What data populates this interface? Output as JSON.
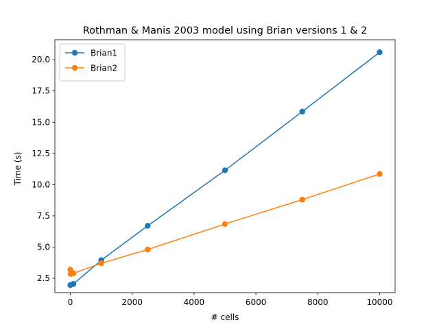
{
  "chart_data": {
    "type": "line",
    "title": "Rothman & Manis 2003 model using Brian versions 1 & 2",
    "xlabel": "# cells",
    "ylabel": "Time (s)",
    "xlim": [
      -500,
      10500
    ],
    "ylim": [
      1.35,
      21.6
    ],
    "xticks": [
      0,
      2000,
      4000,
      6000,
      8000,
      10000
    ],
    "yticks": [
      2.5,
      5.0,
      7.5,
      10.0,
      12.5,
      15.0,
      17.5,
      20.0
    ],
    "xtick_labels": [
      "0",
      "2000",
      "4000",
      "6000",
      "8000",
      "10000"
    ],
    "ytick_labels": [
      "2.5",
      "5.0",
      "7.5",
      "10.0",
      "12.5",
      "15.0",
      "17.5",
      "20.0"
    ],
    "grid": false,
    "legend_position": "upper-left",
    "series": [
      {
        "name": "Brian1",
        "color": "#1f77b4",
        "marker": "circle",
        "x": [
          1,
          10,
          100,
          1000,
          2500,
          5000,
          7500,
          10000
        ],
        "y": [
          1.95,
          1.98,
          2.05,
          3.95,
          6.7,
          11.15,
          15.85,
          20.6
        ]
      },
      {
        "name": "Brian2",
        "color": "#ff7f0e",
        "marker": "circle",
        "x": [
          1,
          10,
          100,
          1000,
          2500,
          5000,
          7500,
          10000
        ],
        "y": [
          3.2,
          2.85,
          2.9,
          3.7,
          4.8,
          6.85,
          8.8,
          10.85
        ]
      }
    ]
  }
}
